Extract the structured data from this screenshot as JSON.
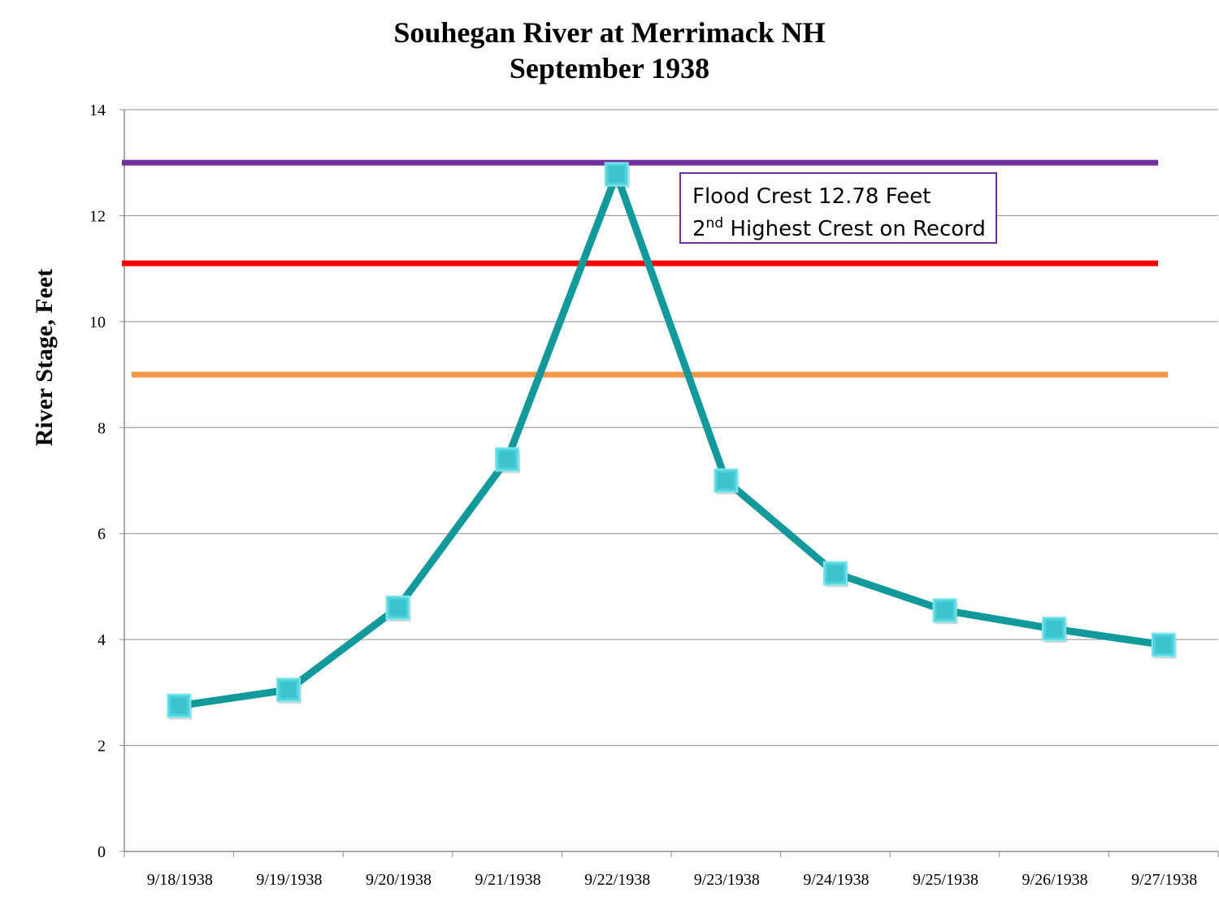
{
  "chart_data": {
    "type": "line",
    "title_lines": [
      "Souhegan River at Merrimack NH",
      "September 1938"
    ],
    "ylabel": "River Stage, Feet",
    "xlabel": "",
    "categories": [
      "9/18/1938",
      "9/19/1938",
      "9/20/1938",
      "9/21/1938",
      "9/22/1938",
      "9/23/1938",
      "9/24/1938",
      "9/25/1938",
      "9/26/1938",
      "9/27/1938"
    ],
    "series": [
      {
        "values": [
          2.75,
          3.05,
          4.6,
          7.4,
          12.78,
          7.0,
          5.25,
          4.55,
          4.2,
          3.9
        ],
        "line_color": "#12999b",
        "marker": "square",
        "marker_color": "#4fd3dc"
      }
    ],
    "ylim": [
      0,
      14
    ],
    "yticks": [
      0,
      2,
      4,
      6,
      8,
      10,
      12,
      14
    ],
    "grid": true,
    "reference_lines": [
      {
        "y": 13.0,
        "color": "#7030a0"
      },
      {
        "y": 11.1,
        "color": "#ff0000"
      },
      {
        "y": 9.0,
        "color": "#f79646"
      }
    ],
    "annotation": {
      "line1": "Flood Crest 12.78 Feet",
      "line2_pre": "2",
      "line2_sup": "nd",
      "line2_post": " Highest Crest on Record",
      "border_color": "#7030a0"
    }
  }
}
